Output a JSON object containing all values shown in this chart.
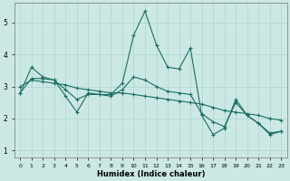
{
  "xlabel": "Humidex (Indice chaleur)",
  "background_color": "#cce8e4",
  "grid_color": "#aad4ce",
  "line_color": "#1a6e62",
  "xlim": [
    -0.5,
    23.5
  ],
  "ylim": [
    0.8,
    5.6
  ],
  "yticks": [
    1,
    2,
    3,
    4,
    5
  ],
  "xticks": [
    0,
    1,
    2,
    3,
    4,
    5,
    6,
    7,
    8,
    9,
    10,
    11,
    12,
    13,
    14,
    15,
    16,
    17,
    18,
    19,
    20,
    21,
    22,
    23
  ],
  "series1_x": [
    0,
    1,
    2,
    3,
    4,
    5,
    6,
    7,
    8,
    9,
    10,
    11,
    12,
    13,
    14,
    15,
    16,
    17,
    18,
    19,
    20,
    21,
    22,
    23
  ],
  "series1_y": [
    2.8,
    3.6,
    3.3,
    3.2,
    2.7,
    2.2,
    2.8,
    2.75,
    2.75,
    3.1,
    4.6,
    5.35,
    4.3,
    3.6,
    3.55,
    4.2,
    2.1,
    1.5,
    1.7,
    2.6,
    2.1,
    1.85,
    1.5,
    1.6
  ],
  "series2_x": [
    0,
    1,
    2,
    3,
    4,
    5,
    6,
    7,
    8,
    9,
    10,
    11,
    12,
    13,
    14,
    15,
    16,
    17,
    18,
    19,
    20,
    21,
    22,
    23
  ],
  "series2_y": [
    3.0,
    3.2,
    3.15,
    3.1,
    3.05,
    2.95,
    2.9,
    2.85,
    2.8,
    2.8,
    2.75,
    2.7,
    2.65,
    2.6,
    2.55,
    2.5,
    2.45,
    2.35,
    2.25,
    2.2,
    2.15,
    2.1,
    2.0,
    1.95
  ],
  "series3_x": [
    0,
    1,
    2,
    3,
    4,
    5,
    6,
    7,
    8,
    9,
    10,
    11,
    12,
    13,
    14,
    15,
    16,
    17,
    18,
    19,
    20,
    21,
    22,
    23
  ],
  "series3_y": [
    2.8,
    3.25,
    3.25,
    3.2,
    2.9,
    2.6,
    2.75,
    2.75,
    2.7,
    2.9,
    3.3,
    3.2,
    3.0,
    2.85,
    2.8,
    2.75,
    2.15,
    1.9,
    1.75,
    2.5,
    2.1,
    1.85,
    1.55,
    1.6
  ]
}
